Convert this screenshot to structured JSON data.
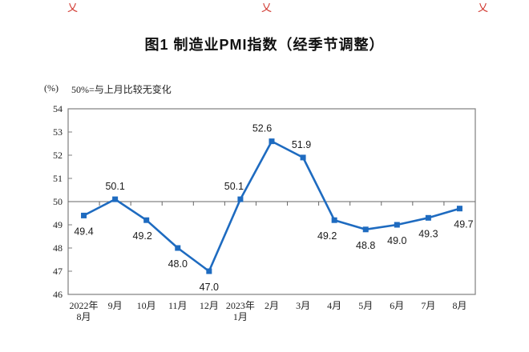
{
  "page": {
    "broken_image_glyph": "乂"
  },
  "header": {
    "title": "图1 制造业PMI指数（经季节调整）"
  },
  "axis_note": {
    "unit": "(%)",
    "note": "50%=与上月比较无变化"
  },
  "chart_data": {
    "type": "line",
    "title": "图1 制造业PMI指数（经季节调整）",
    "xlabel": "",
    "ylabel": "(%)",
    "ylim": [
      46,
      54
    ],
    "ytick_step": 1,
    "reference_line": 50,
    "grid": false,
    "legend_position": "none",
    "line_color": "#1e6bc0",
    "axis_color": "#7f7f7f",
    "categories": [
      [
        "2022年",
        "8月"
      ],
      [
        "9月"
      ],
      [
        "10月"
      ],
      [
        "11月"
      ],
      [
        "12月"
      ],
      [
        "2023年",
        "1月"
      ],
      [
        "2月"
      ],
      [
        "3月"
      ],
      [
        "4月"
      ],
      [
        "5月"
      ],
      [
        "6月"
      ],
      [
        "7月"
      ],
      [
        "8月"
      ]
    ],
    "series": [
      {
        "name": "制造业PMI指数",
        "values": [
          49.4,
          50.1,
          49.2,
          48.0,
          47.0,
          50.1,
          52.6,
          51.9,
          49.2,
          48.8,
          49.0,
          49.3,
          49.7
        ]
      }
    ],
    "point_labels": [
      "49.4",
      "50.1",
      "49.2",
      "48.0",
      "47.0",
      "50.1",
      "52.6",
      "51.9",
      "49.2",
      "48.8",
      "49.0",
      "49.3",
      "49.7"
    ],
    "label_side": [
      "below",
      "above",
      "below",
      "below",
      "below",
      "above",
      "above",
      "above",
      "below",
      "below",
      "below",
      "below",
      "below"
    ],
    "label_dx": [
      0,
      0,
      -5,
      0,
      0,
      -8,
      -12,
      -2,
      -9,
      0,
      0,
      0,
      5
    ]
  }
}
